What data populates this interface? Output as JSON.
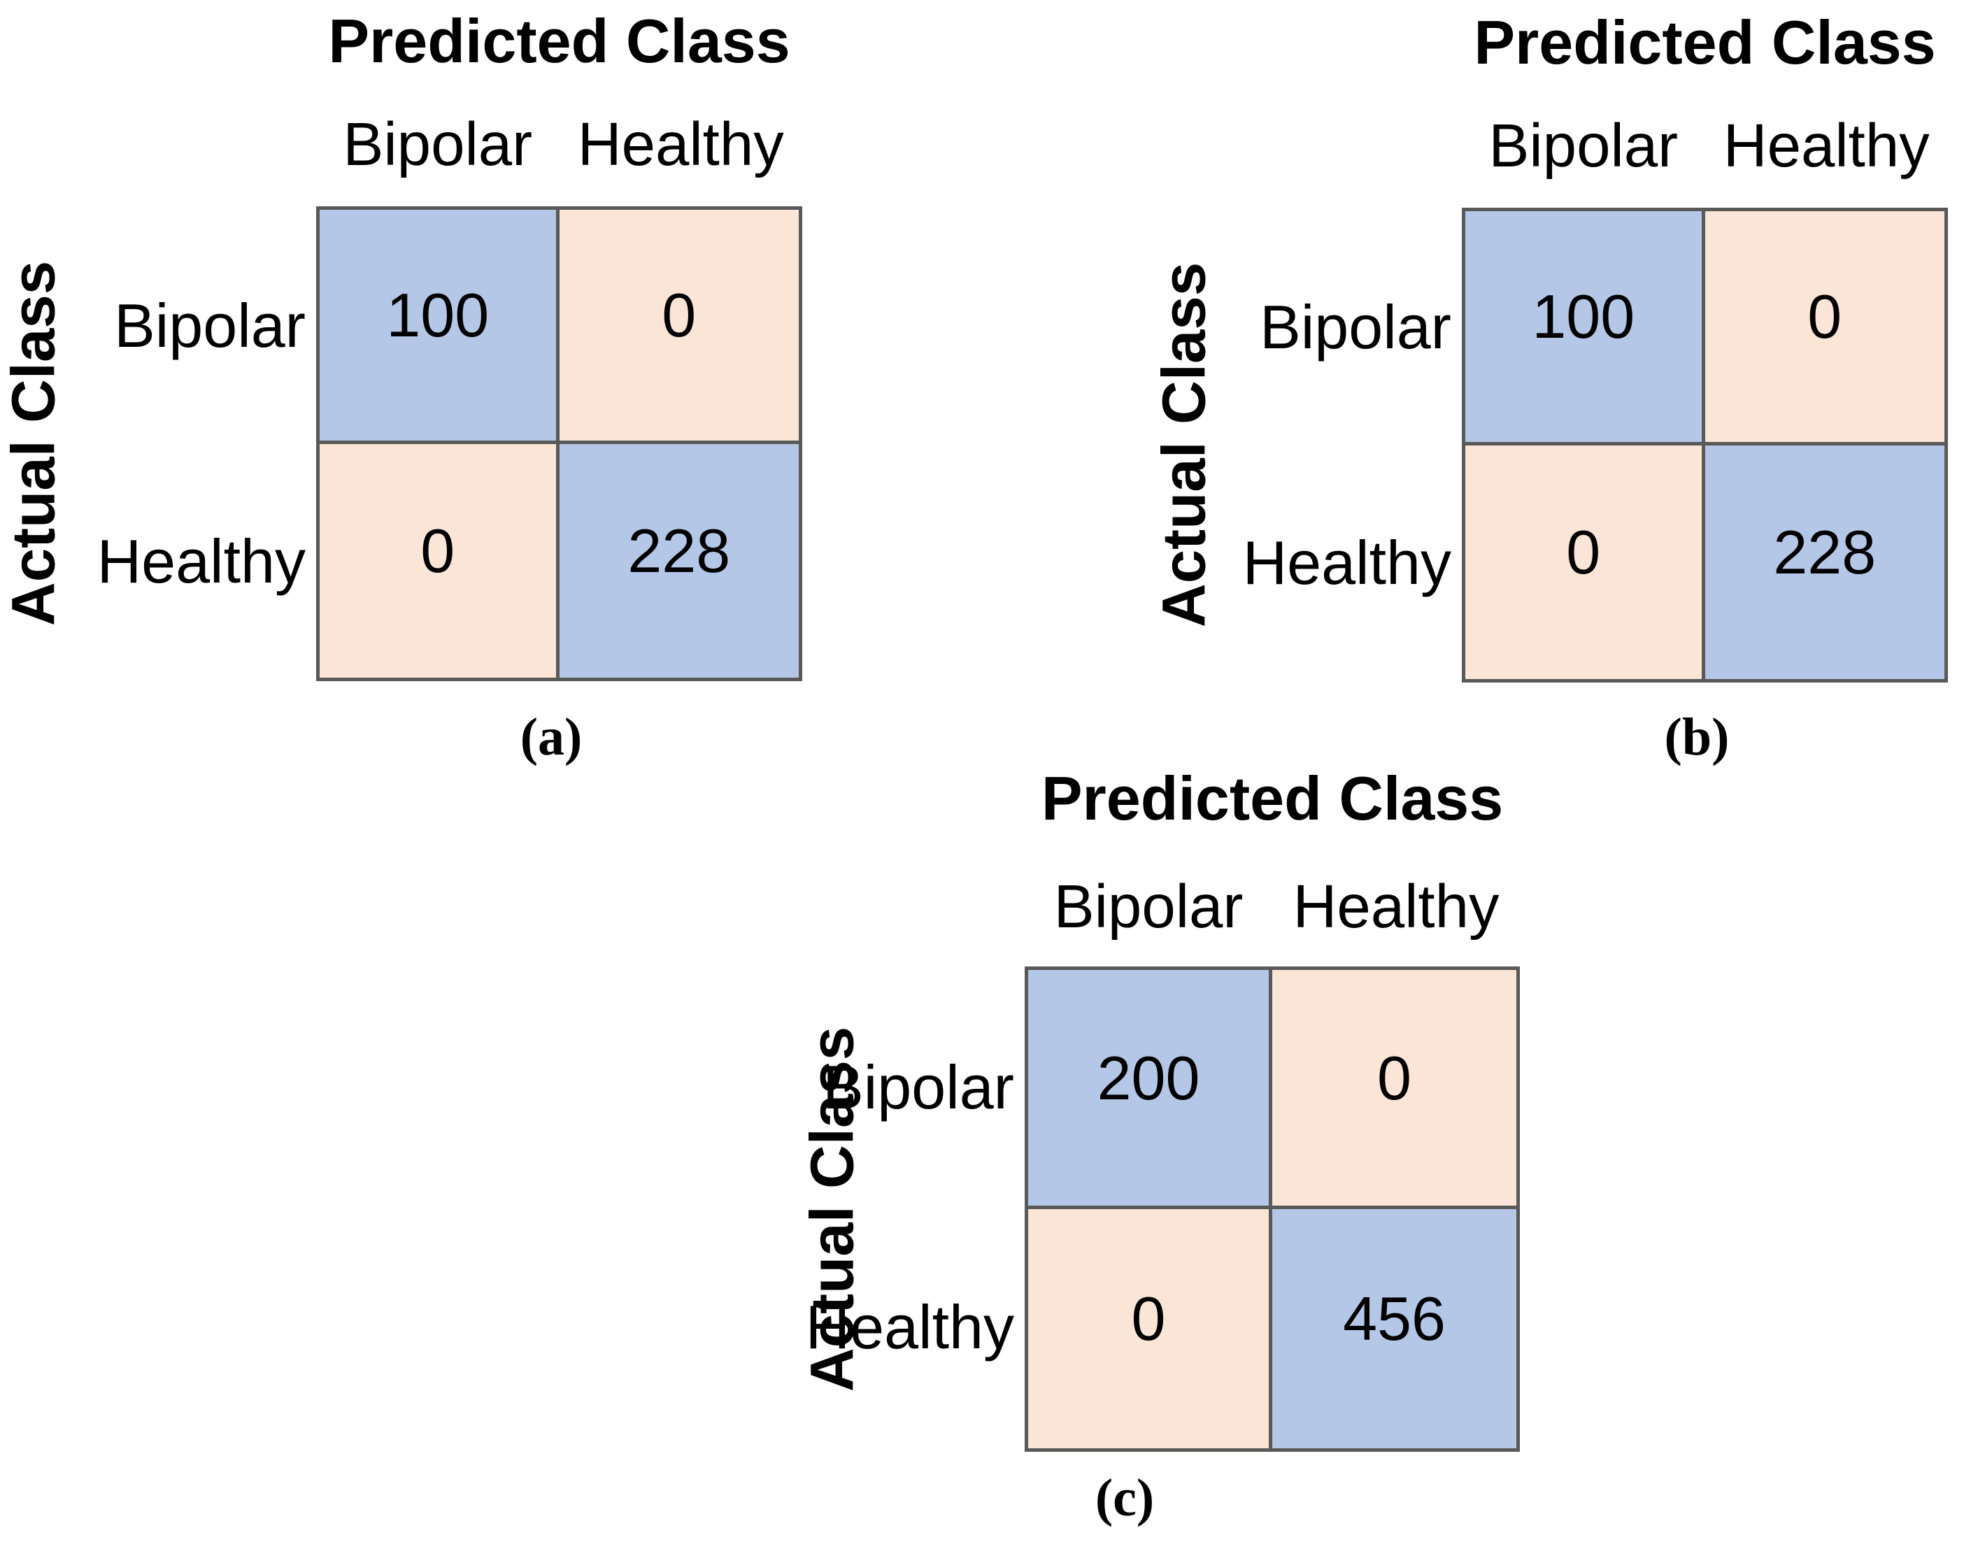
{
  "styles": {
    "diagonal_cell_color": "#B4C7E7",
    "off_diagonal_cell_color": "#FBE5D6",
    "grid_border_color": "#595959",
    "text_color": "#000000",
    "background_color": "#FFFFFF"
  },
  "chart_data": [
    {
      "type": "heatmap",
      "panel_caption": "(a)",
      "title": "Predicted Class",
      "xlabel": "Predicted Class",
      "ylabel": "Actual Class",
      "x_categories": [
        "Bipolar",
        "Healthy"
      ],
      "y_categories": [
        "Bipolar",
        "Healthy"
      ],
      "matrix": [
        [
          100,
          0
        ],
        [
          0,
          228
        ]
      ],
      "cell_colors": [
        [
          "#B4C7E7",
          "#FBE5D6"
        ],
        [
          "#FBE5D6",
          "#B4C7E7"
        ]
      ],
      "legend": "none",
      "grid": "on"
    },
    {
      "type": "heatmap",
      "panel_caption": "(b)",
      "title": "Predicted Class",
      "xlabel": "Predicted Class",
      "ylabel": "Actual Class",
      "x_categories": [
        "Bipolar",
        "Healthy"
      ],
      "y_categories": [
        "Bipolar",
        "Healthy"
      ],
      "matrix": [
        [
          100,
          0
        ],
        [
          0,
          228
        ]
      ],
      "cell_colors": [
        [
          "#B4C7E7",
          "#FBE5D6"
        ],
        [
          "#FBE5D6",
          "#B4C7E7"
        ]
      ],
      "legend": "none",
      "grid": "on"
    },
    {
      "type": "heatmap",
      "panel_caption": "(c)",
      "title": "Predicted Class",
      "xlabel": "Predicted Class",
      "ylabel": "Actual Class",
      "x_categories": [
        "Bipolar",
        "Healthy"
      ],
      "y_categories": [
        "Bipolar",
        "Healthy"
      ],
      "matrix": [
        [
          200,
          0
        ],
        [
          0,
          456
        ]
      ],
      "cell_colors": [
        [
          "#B4C7E7",
          "#FBE5D6"
        ],
        [
          "#FBE5D6",
          "#B4C7E7"
        ]
      ],
      "legend": "none",
      "grid": "on"
    }
  ]
}
